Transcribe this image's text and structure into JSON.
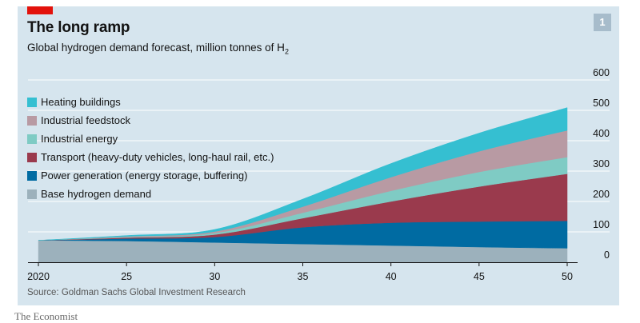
{
  "header": {
    "title": "The long ramp",
    "subtitle_main": "Global hydrogen demand forecast, million tonnes of H",
    "subtitle_sub": "2",
    "chart_number": "1"
  },
  "footer": {
    "source": "Source: Goldman Sachs Global Investment Research",
    "brand": "The Economist"
  },
  "colors": {
    "background": "#d6e5ee",
    "accent_bar": "#e3120b",
    "gridline": "#ffffff",
    "axis": "#121212"
  },
  "chart_data": {
    "type": "area",
    "stacked": true,
    "x": [
      2020,
      2025,
      2030,
      2035,
      2040,
      2045,
      2050
    ],
    "x_tick_labels": [
      "2020",
      "25",
      "30",
      "35",
      "40",
      "45",
      "50"
    ],
    "ylim": [
      0,
      600
    ],
    "y_ticks": [
      0,
      100,
      200,
      300,
      400,
      500,
      600
    ],
    "y_axis_side": "right",
    "grid": true,
    "legend_placement": "top-left",
    "series": [
      {
        "name": "Base hydrogen demand",
        "color": "#9cb1bc",
        "values": [
          72,
          70,
          65,
          60,
          55,
          50,
          46
        ]
      },
      {
        "name": "Power generation (energy storage, buffering)",
        "color": "#006ba2",
        "values": [
          0,
          8,
          18,
          55,
          75,
          84,
          90
        ]
      },
      {
        "name": "Transport (heavy-duty vehicles, long-haul rail, etc.)",
        "color": "#9a3a4d",
        "values": [
          0,
          3,
          8,
          30,
          70,
          115,
          155
        ]
      },
      {
        "name": "Industrial energy",
        "color": "#7fcbc4",
        "values": [
          0,
          2,
          5,
          18,
          35,
          48,
          55
        ]
      },
      {
        "name": "Industrial feedstock",
        "color": "#b89aa3",
        "values": [
          0,
          2,
          5,
          20,
          45,
          68,
          88
        ]
      },
      {
        "name": "Heating buildings",
        "color": "#35bfd1",
        "values": [
          0,
          3,
          7,
          25,
          45,
          60,
          75
        ]
      }
    ]
  }
}
